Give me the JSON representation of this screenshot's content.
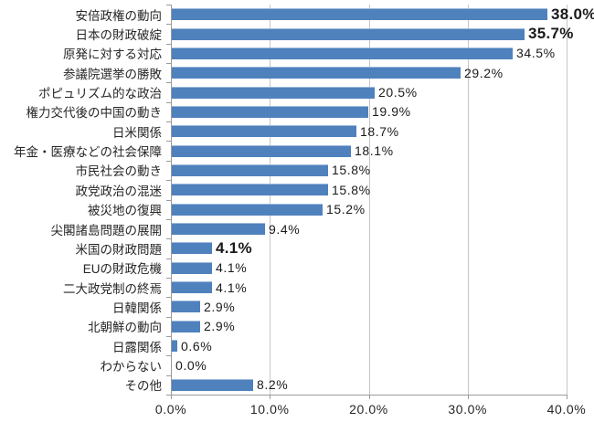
{
  "chart_data": {
    "type": "bar",
    "orientation": "horizontal",
    "title": "",
    "xlabel": "",
    "ylabel": "",
    "grid": true,
    "legend_position": "none",
    "xlim": [
      0,
      40
    ],
    "categories": [
      "安倍政権の動向",
      "日本の財政破綻",
      "原発に対する対応",
      "参議院選挙の勝敗",
      "ポピュリズム的な政治",
      "権力交代後の中国の動き",
      "日米関係",
      "年金・医療などの社会保障",
      "市民社会の動き",
      "政党政治の混迷",
      "被災地の復興",
      "尖閣諸島問題の展開",
      "米国の財政問題",
      "EUの財政危機",
      "二大政党制の終焉",
      "日韓関係",
      "北朝鮮の動向",
      "日露関係",
      "わからない",
      "その他"
    ],
    "values": [
      38.0,
      35.7,
      34.5,
      29.2,
      20.5,
      19.9,
      18.7,
      18.1,
      15.8,
      15.8,
      15.2,
      9.4,
      4.1,
      4.1,
      4.1,
      2.9,
      2.9,
      0.6,
      0.0,
      8.2
    ],
    "value_labels": [
      "38.0%",
      "35.7%",
      "34.5%",
      "29.2%",
      "20.5%",
      "19.9%",
      "18.7%",
      "18.1%",
      "15.8%",
      "15.8%",
      "15.2%",
      "9.4%",
      "4.1%",
      "4.1%",
      "4.1%",
      "2.9%",
      "2.9%",
      "0.6%",
      "0.0%",
      "8.2%"
    ],
    "bold_value_labels": [
      true,
      true,
      false,
      false,
      false,
      false,
      false,
      false,
      false,
      false,
      false,
      false,
      true,
      false,
      false,
      false,
      false,
      false,
      false,
      false
    ],
    "x_tick_labels": [
      "0.0%",
      "10.0%",
      "20.0%",
      "30.0%",
      "40.0%"
    ],
    "x_tick_values": [
      0,
      10,
      20,
      30,
      40
    ],
    "colors": {
      "bar": "#4F81BD",
      "gridline": "#C6C6C6",
      "axis": "#9B9B9B",
      "text": "#262626"
    }
  }
}
